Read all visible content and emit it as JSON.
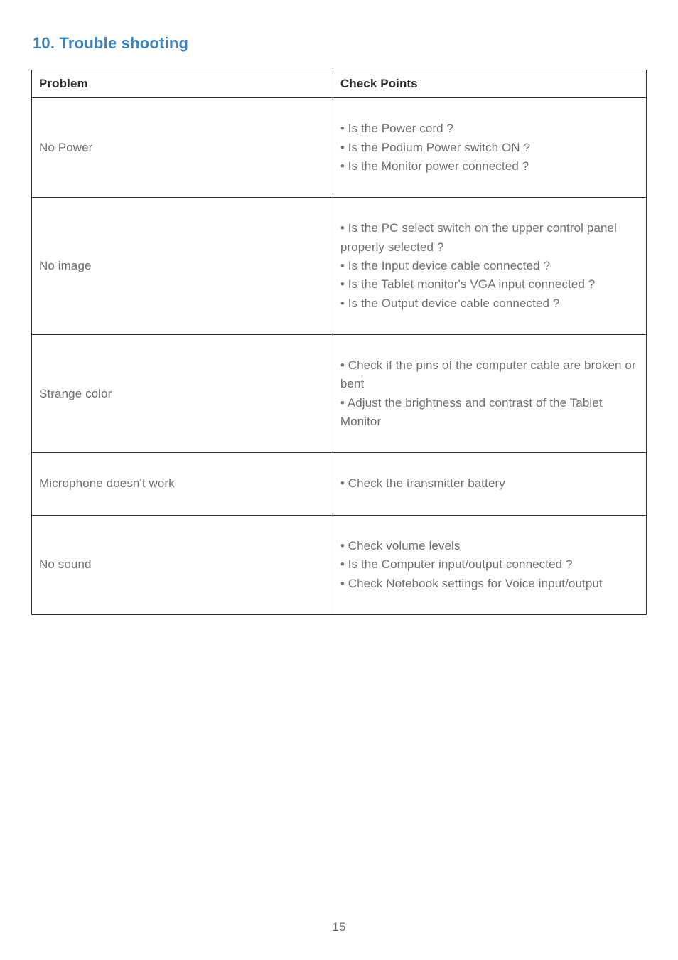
{
  "section": {
    "title": "10. Trouble shooting",
    "title_color": "#3b84c4",
    "title_fontsize": 22
  },
  "table": {
    "border_color": "#2d2d2d",
    "header_text_color": "#2d2d2d",
    "cell_text_color": "#6f6f6f",
    "columns": [
      {
        "key": "problem",
        "label": "Problem"
      },
      {
        "key": "check",
        "label": "Check Points"
      }
    ],
    "rows": [
      {
        "problem": "No Power",
        "checks": [
          "Is the Power cord ?",
          "Is the Podium Power switch ON ?",
          "Is the Monitor power connected ?"
        ]
      },
      {
        "problem": "No image",
        "checks": [
          "Is the PC select switch on the upper control panel properly selected ?",
          "Is the Input device cable connected ?",
          "Is the Tablet monitor's VGA input connected ?",
          "Is the Output device cable connected ?"
        ]
      },
      {
        "problem": "Strange color",
        "checks": [
          "Check if the pins of the computer cable are broken or bent",
          "Adjust the brightness and contrast of the Tablet Monitor"
        ]
      },
      {
        "problem": "Microphone doesn't work",
        "checks": [
          "Check the transmitter battery"
        ]
      },
      {
        "problem": "No sound",
        "checks": [
          "Check volume levels",
          "Is the Computer input/output connected ?",
          "Check Notebook settings for Voice input/output"
        ]
      }
    ]
  },
  "page_number": "15",
  "page_number_color": "#6f6f6f"
}
